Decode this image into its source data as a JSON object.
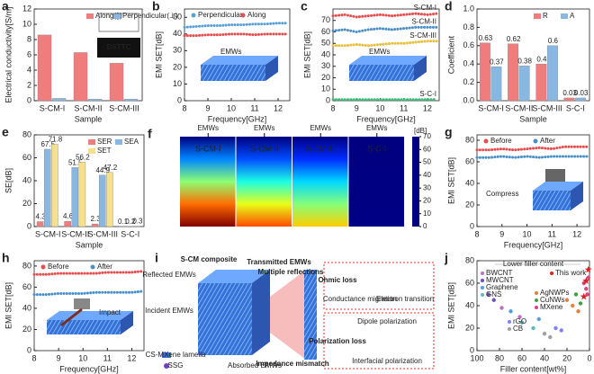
{
  "chart_data": [
    {
      "label": "a",
      "type": "bar",
      "ylabel": "Electrical conductivity[S/m]",
      "xlabel": "Sample",
      "categories": [
        "S-CM-I",
        "S-CM-II",
        "S-CM-III"
      ],
      "series": [
        {
          "name": "Along(∥)",
          "color": "#f07c7c",
          "values": [
            8.6,
            6.3,
            4.9
          ]
        },
        {
          "name": "Perpendicular(⊥)",
          "color": "#88b8e2",
          "values": [
            0.3,
            0.2,
            0.2
          ]
        }
      ],
      "ylim": [
        0,
        12
      ],
      "yticks": [
        0,
        2,
        4,
        6,
        8,
        10,
        12
      ],
      "annotation": "DSTTC"
    },
    {
      "label": "b",
      "type": "line",
      "ylabel": "EMI SET[dB]",
      "xlabel": "Frequency[GHz]",
      "x": [
        8,
        8.5,
        9,
        9.5,
        10,
        10.5,
        11,
        11.5,
        12,
        12.4
      ],
      "series": [
        {
          "name": "Perpendicular",
          "color": "#5aa0d8",
          "values": [
            44,
            44.5,
            45,
            45,
            45.5,
            45.5,
            46,
            46,
            46.5,
            46.5
          ]
        },
        {
          "name": "Along",
          "color": "#e84c4c",
          "values": [
            39,
            39,
            39.5,
            39.5,
            40,
            40,
            39.5,
            40,
            40,
            40
          ]
        }
      ],
      "xlim": [
        8,
        12.5
      ],
      "xticks": [
        8,
        9,
        10,
        11,
        12
      ],
      "ylim": [
        0,
        55
      ],
      "yticks": [
        0,
        10,
        20,
        30,
        40,
        50
      ],
      "annotation": "EMWs"
    },
    {
      "label": "c",
      "type": "line",
      "ylabel": "EMI SET[dB]",
      "xlabel": "Frequency[GHz]",
      "legend": "inline",
      "x": [
        8,
        8.5,
        9,
        9.5,
        10,
        10.5,
        11,
        11.5,
        12,
        12.4
      ],
      "series": [
        {
          "name": "S-CM-I",
          "color": "#e84c4c",
          "values": [
            74,
            75,
            73,
            74,
            75,
            74,
            75,
            76,
            75,
            76
          ]
        },
        {
          "name": "S-CM-II",
          "color": "#4a90c8",
          "values": [
            61,
            62,
            60,
            62,
            63,
            62,
            63,
            64,
            64,
            64
          ]
        },
        {
          "name": "S-CM-III",
          "color": "#e8c040",
          "values": [
            48,
            48,
            49,
            48,
            49,
            50,
            50,
            51,
            52,
            52
          ]
        },
        {
          "name": "S-C-I",
          "color": "#3cb878",
          "values": [
            1,
            1,
            1,
            1,
            1,
            1,
            1,
            1,
            1,
            1
          ]
        }
      ],
      "xlim": [
        8,
        12.5
      ],
      "xticks": [
        8,
        9,
        10,
        11,
        12
      ],
      "ylim": [
        0,
        80
      ],
      "yticks": [
        0,
        10,
        20,
        30,
        40,
        50,
        60,
        70
      ],
      "annotation": "EMWs"
    },
    {
      "label": "d",
      "type": "bar",
      "ylabel": "Coefficient",
      "xlabel": "Sample",
      "show_values": true,
      "categories": [
        "S-CM-I",
        "S-CM-II",
        "S-CM-III",
        "S-C-I"
      ],
      "series": [
        {
          "name": "R",
          "color": "#f07c7c",
          "values": [
            0.63,
            0.62,
            0.4,
            0.03
          ]
        },
        {
          "name": "A",
          "color": "#88b8e2",
          "values": [
            0.37,
            0.38,
            0.6,
            0.03
          ]
        }
      ],
      "ylim": [
        0,
        1
      ],
      "yticks": [
        {
          "value": 0,
          "label": "0.0"
        },
        0.2,
        0.4,
        0.6,
        0.8,
        {
          "value": 1,
          "label": "1.0"
        }
      ]
    },
    {
      "label": "e",
      "type": "bar",
      "ylabel": "SE[dB]",
      "xlabel": "Sample",
      "show_values": true,
      "categories": [
        "S-CM-I",
        "S-CM-II",
        "S-CM-III",
        "S-C-I"
      ],
      "series": [
        {
          "name": "SER",
          "color": "#f07c7c",
          "values": [
            4.3,
            4.6,
            2.3,
            0.1
          ]
        },
        {
          "name": "SEA",
          "color": "#88b8e2",
          "values": [
            67.5,
            51.5,
            44.9,
            0.2
          ]
        },
        {
          "name": "SET",
          "color": "#f6e08c",
          "values": [
            71.8,
            56.2,
            47.2,
            0.3
          ]
        }
      ],
      "ylim": [
        0,
        80
      ],
      "yticks": [
        0,
        20,
        40,
        60,
        80
      ]
    },
    {
      "label": "f",
      "type": "heatmap",
      "categories": [
        "S-CM-I",
        "S-CM-II",
        "S-CM-III",
        "S-C-I"
      ],
      "values": [
        71.8,
        56.2,
        47.2,
        0.3
      ],
      "zlim": [
        0,
        70
      ],
      "zticks": [
        0,
        10,
        20,
        30,
        40,
        50,
        60,
        70
      ],
      "colorbar_label": "[dB]",
      "annotation": "EMWs"
    },
    {
      "label": "g",
      "type": "line",
      "ylabel": "EMI SET[dB]",
      "xlabel": "Frequency[GHz]",
      "x": [
        8,
        8.5,
        9,
        9.5,
        10,
        10.5,
        11,
        11.5,
        12,
        12.4
      ],
      "series": [
        {
          "name": "Before",
          "color": "#e84c4c",
          "values": [
            71,
            71,
            72,
            71,
            72,
            73,
            72,
            74,
            74,
            74
          ]
        },
        {
          "name": "After",
          "color": "#4a90c8",
          "values": [
            64,
            64,
            65,
            64,
            65,
            64,
            65,
            65,
            65,
            65
          ]
        }
      ],
      "xlim": [
        8,
        12.5
      ],
      "xticks": [
        8,
        9,
        10,
        11,
        12
      ],
      "ylim": [
        0,
        85
      ],
      "yticks": [
        0,
        20,
        40,
        60,
        80
      ],
      "annotation": "Compress"
    },
    {
      "label": "h",
      "type": "line",
      "ylabel": "EMI SET[dB]",
      "xlabel": "Frequency[GHz]",
      "x": [
        8,
        8.5,
        9,
        9.5,
        10,
        10.5,
        11,
        11.5,
        12,
        12.4
      ],
      "series": [
        {
          "name": "Before",
          "color": "#e84c4c",
          "values": [
            72,
            72,
            73,
            73,
            73,
            73,
            74,
            74,
            74,
            75
          ]
        },
        {
          "name": "After",
          "color": "#4a90c8",
          "values": [
            53,
            53,
            54,
            54,
            54,
            55,
            55,
            55,
            55,
            56
          ]
        }
      ],
      "xlim": [
        8,
        12.5
      ],
      "xticks": [
        8,
        9,
        10,
        11,
        12
      ],
      "ylim": [
        0,
        85
      ],
      "yticks": [
        0,
        20,
        40,
        60,
        80
      ],
      "annotation": "Impact"
    },
    {
      "label": "j",
      "type": "scatter",
      "ylabel": "EMI SET[dB]",
      "xlabel": "Filler content[wt%]",
      "series": [
        {
          "name": "BWCNT",
          "color": "#c070c0",
          "x": [
            78,
            62
          ],
          "values": [
            38,
            30
          ]
        },
        {
          "name": "MWCNT",
          "color": "#7050c0",
          "x": [
            90,
            85
          ],
          "values": [
            50,
            45
          ]
        },
        {
          "name": "Graphene",
          "color": "#50a0e0",
          "x": [
            70,
            45
          ],
          "values": [
            35,
            28
          ]
        },
        {
          "name": "GNS",
          "color": "#60b8b8",
          "x": [
            60,
            50
          ],
          "values": [
            25,
            20
          ]
        },
        {
          "name": "AgNWPs",
          "color": "#e08040",
          "x": [
            20,
            15,
            10
          ],
          "values": [
            45,
            40,
            35
          ]
        },
        {
          "name": "CuNWs",
          "color": "#40a040",
          "x": [
            12,
            8
          ],
          "values": [
            50,
            42
          ]
        },
        {
          "name": "MXene",
          "color": "#e04080",
          "x": [
            5,
            3,
            2,
            1
          ],
          "values": [
            60,
            55,
            50,
            65
          ]
        },
        {
          "name": "rGO",
          "color": "#8080ff",
          "x": [
            30,
            25
          ],
          "values": [
            20,
            18
          ]
        },
        {
          "name": "CB",
          "color": "#a0a0a0",
          "x": [
            40,
            35
          ],
          "values": [
            15,
            12
          ]
        },
        {
          "name": "This work",
          "color": "#e02020",
          "marker": "star",
          "x": [
            1,
            3,
            5
          ],
          "values": [
            72,
            62,
            48
          ]
        }
      ],
      "xlim": [
        100,
        0
      ],
      "xticks": [
        100,
        80,
        60,
        40,
        20,
        0
      ],
      "ylim": [
        0,
        80
      ],
      "yticks": [
        0,
        20,
        40,
        60,
        80
      ],
      "annotation": "Lower filler content"
    }
  ],
  "diagram": {
    "label": "i",
    "reflected": "Reflected EMWs",
    "incident": "Incident EMWs",
    "composite": "S-CM composite",
    "transmitted": "Transmitted EMWs",
    "multiple": "Multiple reflections",
    "absorbed": "Absorbed EMWs",
    "impedance": "Impedance mismatch",
    "ohmic": "Ohmic loss",
    "conductance": "Conductance migration",
    "electron": "Electron transition",
    "dipole": "Dipole polarization",
    "polarization": "Polarization loss",
    "interfacial": "Interfacial polarization",
    "lamella": "CS-MXene lamella",
    "ssg": "SSG"
  }
}
